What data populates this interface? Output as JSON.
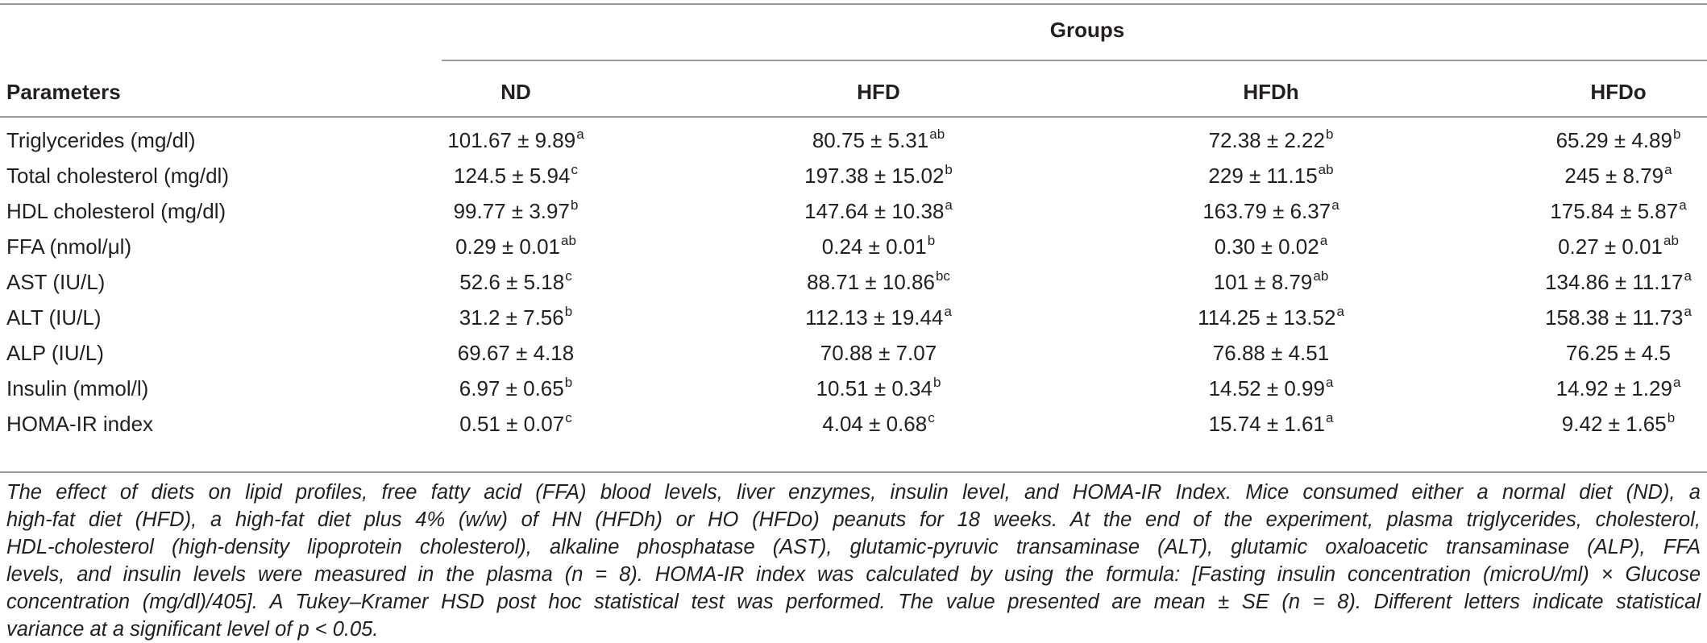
{
  "table": {
    "group_header": "Groups",
    "columns": [
      "Parameters",
      "ND",
      "HFD",
      "HFDh",
      "HFDo"
    ],
    "rows": [
      {
        "label": "Triglycerides (mg/dl)",
        "cells": [
          {
            "value": "101.67 ± 9.89",
            "sup": "a"
          },
          {
            "value": "80.75 ± 5.31",
            "sup": "ab"
          },
          {
            "value": "72.38 ± 2.22",
            "sup": "b"
          },
          {
            "value": "65.29 ± 4.89",
            "sup": "b"
          }
        ]
      },
      {
        "label": "Total cholesterol (mg/dl)",
        "cells": [
          {
            "value": "124.5 ± 5.94",
            "sup": "c"
          },
          {
            "value": "197.38 ± 15.02",
            "sup": "b"
          },
          {
            "value": "229 ± 11.15",
            "sup": "ab"
          },
          {
            "value": "245 ± 8.79",
            "sup": "a"
          }
        ]
      },
      {
        "label": "HDL cholesterol (mg/dl)",
        "cells": [
          {
            "value": "99.77 ± 3.97",
            "sup": "b"
          },
          {
            "value": "147.64 ± 10.38",
            "sup": "a"
          },
          {
            "value": "163.79 ± 6.37",
            "sup": "a"
          },
          {
            "value": "175.84 ± 5.87",
            "sup": "a"
          }
        ]
      },
      {
        "label": "FFA (nmol/μl)",
        "cells": [
          {
            "value": "0.29 ± 0.01",
            "sup": "ab"
          },
          {
            "value": "0.24 ± 0.01",
            "sup": "b"
          },
          {
            "value": "0.30 ± 0.02",
            "sup": "a"
          },
          {
            "value": "0.27 ± 0.01",
            "sup": "ab"
          }
        ]
      },
      {
        "label": "AST (IU/L)",
        "cells": [
          {
            "value": "52.6 ± 5.18",
            "sup": "c"
          },
          {
            "value": "88.71 ± 10.86",
            "sup": "bc"
          },
          {
            "value": "101 ± 8.79",
            "sup": "ab"
          },
          {
            "value": "134.86 ± 11.17",
            "sup": "a"
          }
        ]
      },
      {
        "label": "ALT (IU/L)",
        "cells": [
          {
            "value": "31.2 ± 7.56",
            "sup": "b"
          },
          {
            "value": "112.13 ± 19.44",
            "sup": "a"
          },
          {
            "value": "114.25 ± 13.52",
            "sup": "a"
          },
          {
            "value": "158.38 ± 11.73",
            "sup": "a"
          }
        ]
      },
      {
        "label": "ALP (IU/L)",
        "cells": [
          {
            "value": "69.67 ± 4.18",
            "sup": ""
          },
          {
            "value": "70.88 ± 7.07",
            "sup": ""
          },
          {
            "value": "76.88 ± 4.51",
            "sup": ""
          },
          {
            "value": "76.25 ± 4.5",
            "sup": ""
          }
        ]
      },
      {
        "label": "Insulin (mmol/l)",
        "cells": [
          {
            "value": "6.97 ± 0.65",
            "sup": "b"
          },
          {
            "value": "10.51 ± 0.34",
            "sup": "b"
          },
          {
            "value": "14.52 ± 0.99",
            "sup": "a"
          },
          {
            "value": "14.92 ± 1.29",
            "sup": "a"
          }
        ]
      },
      {
        "label": "HOMA-IR index",
        "cells": [
          {
            "value": "0.51 ± 0.07",
            "sup": "c"
          },
          {
            "value": "4.04 ± 0.68",
            "sup": "c"
          },
          {
            "value": "15.74 ± 1.61",
            "sup": "a"
          },
          {
            "value": "9.42 ± 1.65",
            "sup": "b"
          }
        ]
      }
    ]
  },
  "caption": [
    "The effect of diets on lipid profiles, free fatty acid (FFA) blood levels, liver enzymes, insulin level, and HOMA-IR Index. Mice consumed either a normal diet (ND), a",
    "high-fat diet (HFD), a high-fat diet plus 4% (w/w) of HN (HFDh) or HO (HFDo) peanuts for 18 weeks. At the end of the experiment, plasma triglycerides, cholesterol,",
    "HDL-cholesterol (high-density lipoprotein cholesterol), alkaline phosphatase (AST), glutamic-pyruvic transaminase (ALT), glutamic oxaloacetic transaminase (ALP), FFA",
    "levels, and insulin levels were measured in the plasma (n = 8). HOMA-IR index was calculated by using the formula: [Fasting insulin concentration (microU/ml) × Glucose",
    "concentration (mg/dl)/405]. A Tukey–Kramer HSD post hoc statistical test was performed. The value presented are mean ± SE (n = 8). Different letters indicate statistical",
    "variance at a significant level of p < 0.05."
  ]
}
